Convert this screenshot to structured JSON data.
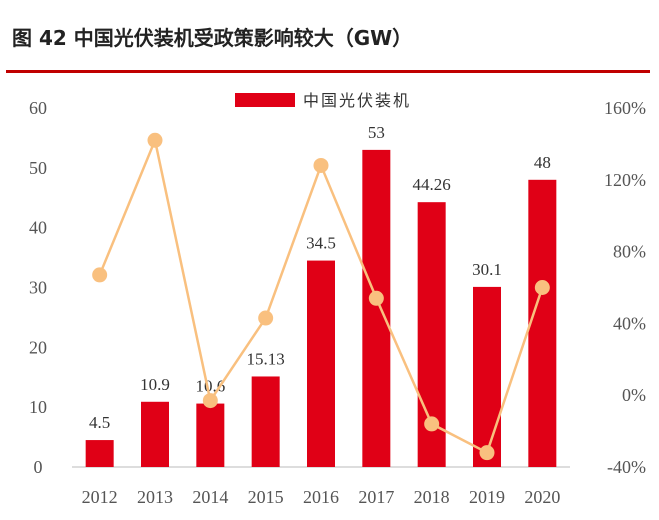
{
  "title": "图 42 中国光伏装机受政策影响较大（GW）",
  "colors": {
    "bar": "#e00016",
    "line": "#f9c07f",
    "title_rule": "#c00000"
  },
  "chart_data": {
    "type": "bar+line",
    "categories": [
      "2012",
      "2013",
      "2014",
      "2015",
      "2016",
      "2017",
      "2018",
      "2019",
      "2020"
    ],
    "series": [
      {
        "name": "中国光伏装机",
        "type": "bar",
        "axis": "left",
        "values": [
          4.5,
          10.9,
          10.6,
          15.13,
          34.5,
          53,
          44.26,
          30.1,
          48
        ],
        "labels": [
          "4.5",
          "10.9",
          "10.6",
          "15.13",
          "34.5",
          "53",
          "44.26",
          "30.1",
          "48"
        ]
      },
      {
        "type": "line",
        "axis": "right",
        "values": [
          0.67,
          1.42,
          -0.03,
          0.43,
          1.28,
          0.54,
          -0.16,
          -0.32,
          0.6
        ]
      }
    ],
    "y_left": {
      "min": 0,
      "max": 60,
      "ticks": [
        "0",
        "10",
        "20",
        "30",
        "40",
        "50",
        "60"
      ]
    },
    "y_right": {
      "min": -0.4,
      "max": 1.6,
      "ticks": [
        "-40%",
        "0%",
        "40%",
        "80%",
        "120%",
        "160%"
      ]
    },
    "legend": {
      "position": "top-center",
      "entries": [
        "中国光伏装机"
      ]
    }
  }
}
